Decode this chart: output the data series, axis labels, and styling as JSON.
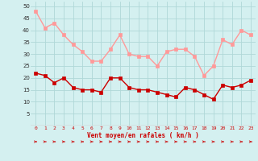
{
  "hours": [
    0,
    1,
    2,
    3,
    4,
    5,
    6,
    7,
    8,
    9,
    10,
    11,
    12,
    13,
    14,
    15,
    16,
    17,
    18,
    19,
    20,
    21,
    22,
    23
  ],
  "wind_avg": [
    22,
    21,
    18,
    20,
    16,
    15,
    15,
    14,
    20,
    20,
    16,
    15,
    15,
    14,
    13,
    12,
    16,
    15,
    13,
    11,
    17,
    16,
    17,
    19
  ],
  "wind_gust": [
    48,
    41,
    43,
    38,
    34,
    31,
    27,
    27,
    32,
    38,
    30,
    29,
    29,
    25,
    31,
    32,
    32,
    29,
    21,
    25,
    36,
    34,
    40,
    38
  ],
  "xlabel": "Vent moyen/en rafales ( km/h )",
  "ylim": [
    0,
    52
  ],
  "yticks": [
    5,
    10,
    15,
    20,
    25,
    30,
    35,
    40,
    45,
    50
  ],
  "bg_color": "#d4f0f0",
  "grid_color": "#b0d8d8",
  "line_avg_color": "#cc0000",
  "line_gust_color": "#ff9999",
  "marker_size": 2.5,
  "line_width": 1.0
}
